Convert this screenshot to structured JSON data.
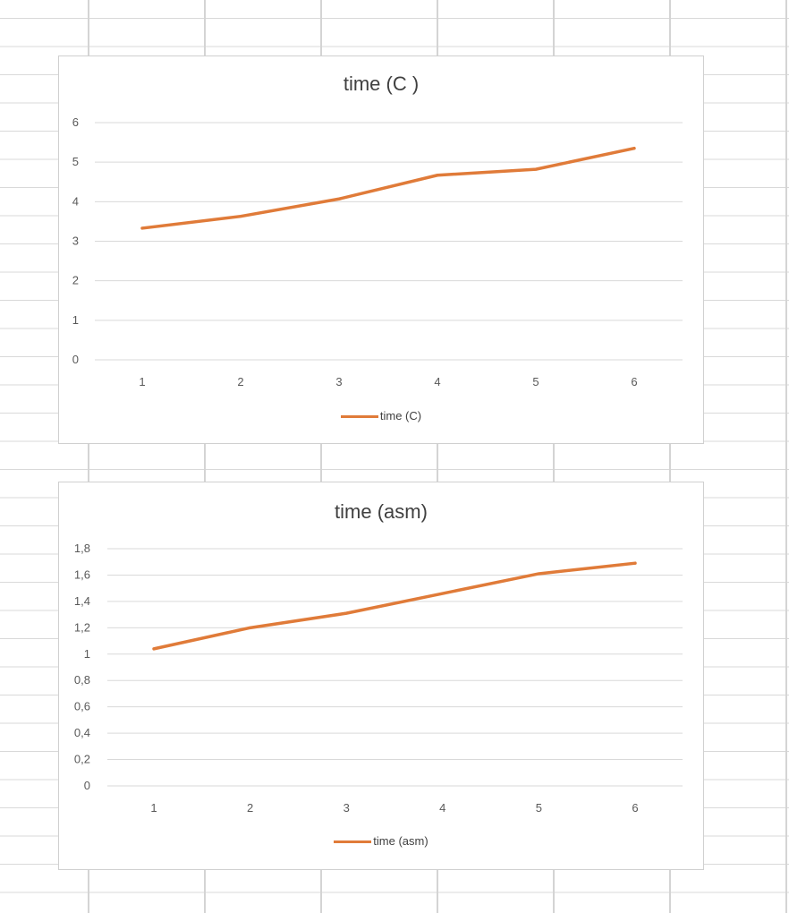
{
  "colors": {
    "series": "#e07b39",
    "gridline": "#d9d9d9",
    "axis_text": "#595959"
  },
  "chart_data": [
    {
      "type": "line",
      "title": "time (C )",
      "xlabel": "",
      "ylabel": "",
      "categories": [
        "1",
        "2",
        "3",
        "4",
        "5",
        "6"
      ],
      "y_ticks": [
        "0",
        "1",
        "2",
        "3",
        "4",
        "5",
        "6"
      ],
      "ylim": [
        0,
        6
      ],
      "grid": true,
      "legend_position": "bottom",
      "series": [
        {
          "name": "time (C)",
          "values": [
            3.33,
            3.63,
            4.07,
            4.67,
            4.82,
            5.35
          ]
        }
      ]
    },
    {
      "type": "line",
      "title": "time (asm)",
      "xlabel": "",
      "ylabel": "",
      "categories": [
        "1",
        "2",
        "3",
        "4",
        "5",
        "6"
      ],
      "y_ticks": [
        "0",
        "0,2",
        "0,4",
        "0,6",
        "0,8",
        "1",
        "1,2",
        "1,4",
        "1,6",
        "1,8"
      ],
      "ylim": [
        0,
        1.8
      ],
      "grid": true,
      "legend_position": "bottom",
      "series": [
        {
          "name": "time (asm)",
          "values": [
            1.04,
            1.2,
            1.31,
            1.46,
            1.61,
            1.69
          ]
        }
      ]
    }
  ]
}
